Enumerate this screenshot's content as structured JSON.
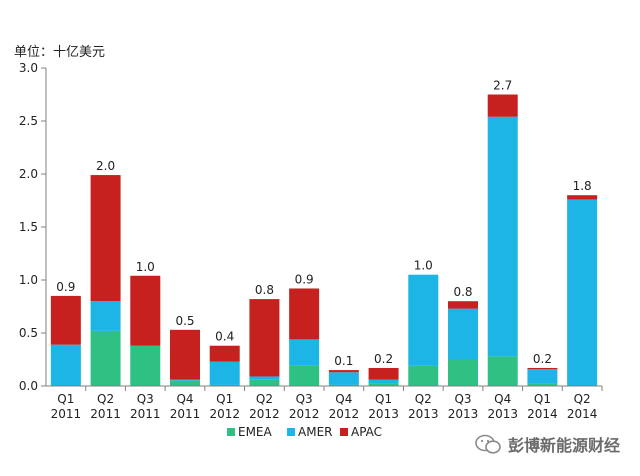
{
  "unit_label": "单位：十亿美元",
  "watermark": "彭博新能源财经",
  "colors": {
    "EMEA": "#2fc184",
    "AMER": "#1cb5e6",
    "APAC": "#c7211f"
  },
  "chart_data": {
    "type": "bar",
    "stacked": true,
    "title": "",
    "ylabel": "单位：十亿美元",
    "xlabel": "",
    "ylim": [
      0,
      3.0
    ],
    "yticks": [
      "0.0",
      "0.5",
      "1.0",
      "1.5",
      "2.0",
      "2.5",
      "3.0"
    ],
    "categories": [
      [
        "Q1",
        "2011"
      ],
      [
        "Q2",
        "2011"
      ],
      [
        "Q3",
        "2011"
      ],
      [
        "Q4",
        "2011"
      ],
      [
        "Q1",
        "2012"
      ],
      [
        "Q2",
        "2012"
      ],
      [
        "Q3",
        "2012"
      ],
      [
        "Q4",
        "2012"
      ],
      [
        "Q1",
        "2013"
      ],
      [
        "Q2",
        "2013"
      ],
      [
        "Q3",
        "2013"
      ],
      [
        "Q4",
        "2013"
      ],
      [
        "Q1",
        "2014"
      ],
      [
        "Q2",
        "2014"
      ]
    ],
    "series": [
      {
        "name": "EMEA",
        "values": [
          0.0,
          0.52,
          0.38,
          0.05,
          0.01,
          0.06,
          0.19,
          0.01,
          0.02,
          0.19,
          0.25,
          0.28,
          0.02,
          0.0
        ]
      },
      {
        "name": "AMER",
        "values": [
          0.39,
          0.28,
          0.0,
          0.01,
          0.22,
          0.03,
          0.25,
          0.12,
          0.04,
          0.86,
          0.48,
          2.26,
          0.14,
          1.76
        ]
      },
      {
        "name": "APAC",
        "values": [
          0.46,
          1.19,
          0.66,
          0.47,
          0.15,
          0.73,
          0.48,
          0.02,
          0.11,
          0.0,
          0.07,
          0.21,
          0.01,
          0.04
        ]
      }
    ],
    "totals": [
      "0.9",
      "2.0",
      "1.0",
      "0.5",
      "0.4",
      "0.8",
      "0.9",
      "0.1",
      "0.2",
      "1.0",
      "0.8",
      "2.7",
      "0.2",
      "1.8"
    ],
    "legend": [
      "EMEA",
      "AMER",
      "APAC"
    ],
    "legend_position": "bottom"
  }
}
